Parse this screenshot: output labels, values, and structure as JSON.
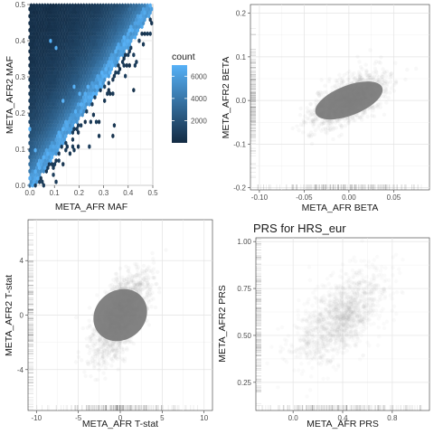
{
  "chart_data": [
    {
      "type": "heatmap",
      "title": "",
      "xlabel": "META_AFR MAF",
      "ylabel": "META_AFR2 MAF",
      "xlim": [
        0.0,
        0.5
      ],
      "ylim": [
        0.0,
        0.5
      ],
      "x_ticks": [
        0.0,
        0.1,
        0.2,
        0.3,
        0.4,
        0.5
      ],
      "y_ticks": [
        0.0,
        0.1,
        0.2,
        0.3,
        0.4,
        0.5
      ],
      "x_tick_labels": [
        "0.0",
        "0.1",
        "0.2",
        "0.3",
        "0.4",
        "0.5"
      ],
      "y_tick_labels": [
        "0.0",
        "0.1",
        "0.2",
        "0.3",
        "0.4",
        "0.5"
      ],
      "grid": true,
      "legend": {
        "title": "count",
        "placement": "right",
        "min": 0,
        "max": 7000,
        "breaks": [
          2000,
          4000,
          6000
        ],
        "break_labels": [
          "2000",
          "4000",
          "6000"
        ],
        "color_low": "#132b43",
        "color_high": "#56b1f7"
      },
      "density_band": {
        "center_slope": 1.0,
        "max_offset": 0.5,
        "core_count": 6500
      }
    },
    {
      "type": "scatter",
      "title": "",
      "xlabel": "META_AFR BETA",
      "ylabel": "META_AFR2 BETA",
      "xlim": [
        -0.11,
        0.09
      ],
      "ylim": [
        -0.205,
        0.22
      ],
      "x_ticks": [
        -0.1,
        -0.05,
        0.0,
        0.05
      ],
      "y_ticks": [
        -0.2,
        -0.1,
        0.0,
        0.1,
        0.2
      ],
      "x_tick_labels": [
        "-0.10",
        "-0.05",
        "0.00",
        "0.05"
      ],
      "y_tick_labels": [
        "-0.2",
        "-0.1",
        "0.0",
        "0.1",
        "0.2"
      ],
      "grid": true,
      "distribution": {
        "mean_x": 0.0,
        "mean_y": 0.0,
        "sd_x": 0.02,
        "sd_y": 0.03,
        "correlation": 0.6
      },
      "rug": {
        "x": true,
        "y": true
      },
      "point_color": "#7f7f7f"
    },
    {
      "type": "scatter",
      "title": "",
      "xlabel": "META_AFR T-stat",
      "ylabel": "META_AFR2 T-stat",
      "xlim": [
        -11,
        11
      ],
      "ylim": [
        -7,
        7
      ],
      "x_ticks": [
        -10,
        -5,
        0,
        5,
        10
      ],
      "y_ticks": [
        -4,
        0,
        4
      ],
      "x_tick_labels": [
        "-10",
        "-5",
        "0",
        "5",
        "10"
      ],
      "y_tick_labels": [
        "-4",
        "0",
        "4"
      ],
      "grid": true,
      "distribution": {
        "mean_x": 0.0,
        "mean_y": 0.0,
        "sd_x": 1.6,
        "sd_y": 1.5,
        "correlation": 0.6
      },
      "rug": {
        "x": true,
        "y": true
      },
      "point_color": "#7f7f7f"
    },
    {
      "type": "scatter",
      "title": "PRS for HRS_eur",
      "xlabel": "META_AFR PRS",
      "ylabel": "META_AFR2 PRS",
      "xlim": [
        -0.3,
        1.1
      ],
      "ylim": [
        0.1,
        1.02
      ],
      "x_ticks": [
        0.0,
        0.4,
        0.8
      ],
      "y_ticks": [
        0.25,
        0.5,
        0.75,
        1.0
      ],
      "x_tick_labels": [
        "0.0",
        "0.4",
        "0.8"
      ],
      "y_tick_labels": [
        "0.25",
        "0.50",
        "0.75",
        "1.00"
      ],
      "grid": true,
      "distribution": {
        "mean_x": 0.38,
        "mean_y": 0.6,
        "sd_x": 0.18,
        "sd_y": 0.12,
        "correlation": 0.6
      },
      "rug": {
        "x": true,
        "y": true
      },
      "point_color": "#9a9a9a"
    }
  ]
}
